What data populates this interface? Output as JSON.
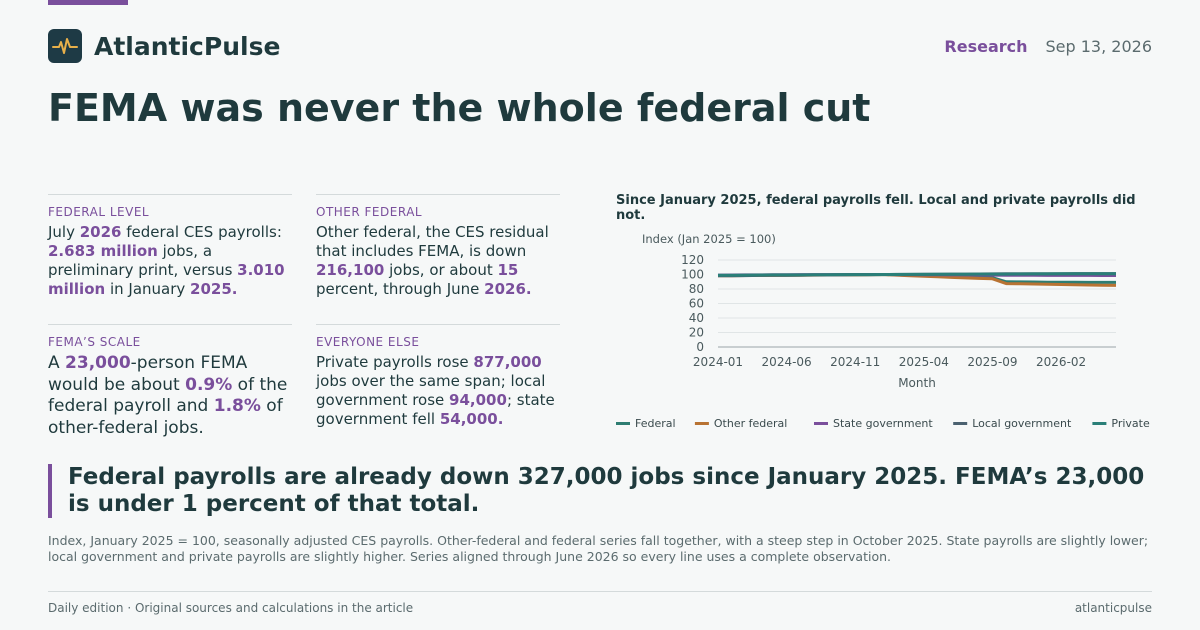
{
  "header": {
    "brand": "AtlanticPulse",
    "logo_icon": "pulse-icon",
    "section": "Research",
    "date": "Sep 13, 2026"
  },
  "headline": "FEMA was never the whole federal cut",
  "cards": [
    {
      "label": "FEDERAL LEVEL",
      "parts": [
        {
          "t": "July "
        },
        {
          "t": "2026",
          "hl": true
        },
        {
          "t": " federal CES payrolls: "
        },
        {
          "t": "2.683 million",
          "hl": true
        },
        {
          "t": " jobs, a preliminary print, versus "
        },
        {
          "t": "3.010 million",
          "hl": true
        },
        {
          "t": " in January "
        },
        {
          "t": "2025.",
          "hl": true
        }
      ]
    },
    {
      "label": "OTHER FEDERAL",
      "parts": [
        {
          "t": "Other federal, the CES residual that includes FEMA, is down "
        },
        {
          "t": "216,100",
          "hl": true
        },
        {
          "t": " jobs, or about "
        },
        {
          "t": "15",
          "hl": true
        },
        {
          "t": " percent, through June "
        },
        {
          "t": "2026.",
          "hl": true
        }
      ]
    },
    {
      "label": "FEMA’S SCALE",
      "parts": [
        {
          "t": "A "
        },
        {
          "t": "23,000",
          "hl": true
        },
        {
          "t": "-person FEMA would be about "
        },
        {
          "t": "0.9%",
          "hl": true
        },
        {
          "t": " of the federal payroll and "
        },
        {
          "t": "1.8%",
          "hl": true
        },
        {
          "t": " of other-federal jobs."
        }
      ]
    },
    {
      "label": "EVERYONE ELSE",
      "parts": [
        {
          "t": "Private payrolls rose "
        },
        {
          "t": "877,000",
          "hl": true
        },
        {
          "t": " jobs over the same span; local government rose "
        },
        {
          "t": "94,000",
          "hl": true
        },
        {
          "t": "; state government fell "
        },
        {
          "t": "54,000.",
          "hl": true
        }
      ]
    }
  ],
  "chart_title": "Since January 2025, federal payrolls fell. Local and private payrolls did not.",
  "chart_data": {
    "type": "line",
    "title": "Since January 2025, federal payrolls fell. Local and private payrolls did not.",
    "ylabel": "Index (Jan 2025 = 100)",
    "xlabel": "Month",
    "ylim": [
      0,
      120
    ],
    "yticks": [
      0,
      20,
      40,
      60,
      80,
      100,
      120
    ],
    "x_tick_labels": [
      "2024-01",
      "2024-06",
      "2024-11",
      "2025-04",
      "2025-09",
      "2026-02"
    ],
    "grid": true,
    "legend": "bottom",
    "x": [
      "2024-01",
      "2024-02",
      "2024-03",
      "2024-04",
      "2024-05",
      "2024-06",
      "2024-07",
      "2024-08",
      "2024-09",
      "2024-10",
      "2024-11",
      "2024-12",
      "2025-01",
      "2025-02",
      "2025-03",
      "2025-04",
      "2025-05",
      "2025-06",
      "2025-07",
      "2025-08",
      "2025-09",
      "2025-10",
      "2025-11",
      "2025-12",
      "2026-01",
      "2026-02",
      "2026-03",
      "2026-04",
      "2026-05",
      "2026-06"
    ],
    "series": [
      {
        "name": "Federal",
        "color": "#2e7d72",
        "values": [
          98.6,
          98.7,
          98.8,
          98.9,
          99.0,
          99.1,
          99.2,
          99.3,
          99.4,
          99.5,
          99.6,
          99.8,
          100,
          99.4,
          98.8,
          98.2,
          97.6,
          97.0,
          96.5,
          96.0,
          95.6,
          90.0,
          89.8,
          89.6,
          89.4,
          89.3,
          89.2,
          89.1,
          89.1,
          89.1
        ]
      },
      {
        "name": "Other federal",
        "color": "#b87333",
        "values": [
          98.3,
          98.4,
          98.6,
          98.7,
          98.8,
          98.9,
          99.0,
          99.2,
          99.3,
          99.4,
          99.5,
          99.7,
          100,
          99.2,
          98.4,
          97.6,
          96.8,
          96.0,
          95.3,
          94.6,
          94.0,
          87.5,
          87.2,
          86.9,
          86.6,
          86.2,
          85.8,
          85.5,
          85.2,
          84.9
        ]
      },
      {
        "name": "State government",
        "color": "#7a4f9c",
        "values": [
          99.2,
          99.3,
          99.4,
          99.5,
          99.6,
          99.7,
          99.8,
          99.8,
          99.9,
          99.9,
          100.0,
          100.0,
          100,
          99.9,
          99.8,
          99.7,
          99.6,
          99.5,
          99.4,
          99.3,
          99.2,
          99.1,
          99.0,
          98.9,
          98.8,
          98.8,
          98.7,
          98.7,
          98.6,
          98.6
        ]
      },
      {
        "name": "Local government",
        "color": "#4b6170",
        "values": [
          98.2,
          98.4,
          98.5,
          98.7,
          98.9,
          99.0,
          99.2,
          99.4,
          99.5,
          99.7,
          99.8,
          99.9,
          100,
          100.1,
          100.2,
          100.3,
          100.4,
          100.5,
          100.6,
          100.7,
          100.8,
          100.9,
          101.0,
          101.0,
          101.1,
          101.1,
          101.2,
          101.2,
          101.3,
          101.3
        ]
      },
      {
        "name": "Private",
        "color": "#2a7f78",
        "values": [
          99.0,
          99.1,
          99.2,
          99.3,
          99.4,
          99.5,
          99.5,
          99.6,
          99.7,
          99.8,
          99.8,
          99.9,
          100,
          100.0,
          100.1,
          100.2,
          100.3,
          100.4,
          100.4,
          100.5,
          100.6,
          100.6,
          100.7,
          100.8,
          100.8,
          100.9,
          100.9,
          101.0,
          101.0,
          101.0
        ]
      }
    ]
  },
  "pullquote": "Federal payrolls are already down 327,000 jobs since January 2025. FEMA’s 23,000 is under 1 percent of that total.",
  "caption": "Index, January 2025 = 100, seasonally adjusted CES payrolls. Other-federal and federal series fall together, with a steep step in October 2025. State payrolls are slightly lower; local government and private payrolls are slightly higher. Series aligned through June 2026 so every line uses a complete observation.",
  "footer": {
    "left": "Daily edition · Original sources and calculations in the article",
    "right": "atlanticpulse"
  },
  "colors": {
    "accent": "#7a4f9c",
    "text": "#1f3a3d",
    "muted": "#5b6b6e",
    "background": "#f6f8f8",
    "logo_bg": "#1e3a45",
    "logo_stroke": "#e8b04a"
  }
}
